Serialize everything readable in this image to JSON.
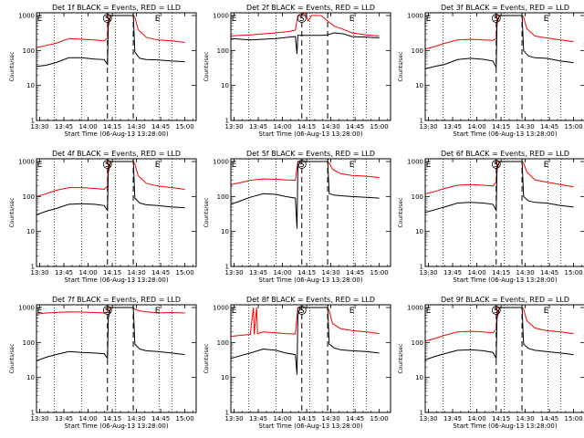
{
  "chart_data": {
    "type": "line",
    "figure": "RHESSI-style detector count-rate lightcurves (3x3 grid)",
    "panels": [
      {
        "title": "Det 1f  BLACK = Events, RED = LLD",
        "black": [
          [
            0,
            35
          ],
          [
            6,
            38
          ],
          [
            12,
            45
          ],
          [
            20,
            62
          ],
          [
            28,
            62
          ],
          [
            36,
            57
          ],
          [
            42,
            55
          ],
          [
            44,
            40
          ],
          [
            44.5,
            500
          ],
          [
            46,
            1000
          ],
          [
            60,
            1000
          ],
          [
            61,
            90
          ],
          [
            64,
            60
          ],
          [
            68,
            55
          ],
          [
            75,
            54
          ],
          [
            84,
            50
          ],
          [
            92,
            48
          ]
        ],
        "red": [
          [
            0,
            120
          ],
          [
            6,
            140
          ],
          [
            12,
            160
          ],
          [
            20,
            220
          ],
          [
            28,
            210
          ],
          [
            36,
            200
          ],
          [
            42,
            190
          ],
          [
            44,
            230
          ],
          [
            44.5,
            1000
          ],
          [
            60,
            1000
          ],
          [
            61,
            900
          ],
          [
            63,
            400
          ],
          [
            68,
            240
          ],
          [
            75,
            200
          ],
          [
            84,
            190
          ],
          [
            92,
            170
          ]
        ]
      },
      {
        "title": "Det 2f  BLACK = Events, RED = LLD",
        "black": [
          [
            0,
            220
          ],
          [
            6,
            210
          ],
          [
            12,
            200
          ],
          [
            20,
            210
          ],
          [
            28,
            220
          ],
          [
            36,
            240
          ],
          [
            40,
            250
          ],
          [
            41,
            80
          ],
          [
            41.5,
            270
          ],
          [
            48,
            270
          ],
          [
            56,
            270
          ],
          [
            60,
            280
          ],
          [
            64,
            320
          ],
          [
            70,
            300
          ],
          [
            75,
            250
          ],
          [
            84,
            240
          ],
          [
            92,
            230
          ]
        ],
        "red": [
          [
            0,
            260
          ],
          [
            6,
            270
          ],
          [
            12,
            280
          ],
          [
            20,
            300
          ],
          [
            28,
            320
          ],
          [
            36,
            350
          ],
          [
            40,
            380
          ],
          [
            41.5,
            1000
          ],
          [
            46,
            1200
          ],
          [
            48,
            700
          ],
          [
            50,
            1000
          ],
          [
            56,
            1000
          ],
          [
            60,
            700
          ],
          [
            64,
            500
          ],
          [
            70,
            400
          ],
          [
            75,
            320
          ],
          [
            84,
            280
          ],
          [
            92,
            260
          ]
        ]
      },
      {
        "title": "Det 3f  BLACK = Events, RED = LLD",
        "black": [
          [
            0,
            30
          ],
          [
            6,
            35
          ],
          [
            12,
            40
          ],
          [
            20,
            55
          ],
          [
            28,
            60
          ],
          [
            36,
            56
          ],
          [
            42,
            50
          ],
          [
            44,
            32
          ],
          [
            44.5,
            600
          ],
          [
            46,
            1000
          ],
          [
            60,
            1000
          ],
          [
            61,
            100
          ],
          [
            64,
            70
          ],
          [
            68,
            62
          ],
          [
            75,
            60
          ],
          [
            84,
            50
          ],
          [
            92,
            45
          ]
        ],
        "red": [
          [
            0,
            110
          ],
          [
            6,
            130
          ],
          [
            12,
            160
          ],
          [
            20,
            200
          ],
          [
            28,
            210
          ],
          [
            36,
            200
          ],
          [
            42,
            195
          ],
          [
            44,
            220
          ],
          [
            44.5,
            1000
          ],
          [
            60,
            1000
          ],
          [
            61,
            900
          ],
          [
            63,
            420
          ],
          [
            68,
            260
          ],
          [
            75,
            230
          ],
          [
            84,
            200
          ],
          [
            92,
            180
          ]
        ]
      },
      {
        "title": "Det 4f  BLACK = Events, RED = LLD",
        "black": [
          [
            0,
            30
          ],
          [
            6,
            38
          ],
          [
            12,
            45
          ],
          [
            20,
            60
          ],
          [
            28,
            62
          ],
          [
            36,
            60
          ],
          [
            42,
            55
          ],
          [
            44,
            40
          ],
          [
            44.5,
            500
          ],
          [
            46,
            1000
          ],
          [
            60,
            1000
          ],
          [
            61,
            90
          ],
          [
            64,
            65
          ],
          [
            68,
            58
          ],
          [
            75,
            55
          ],
          [
            84,
            50
          ],
          [
            92,
            48
          ]
        ],
        "red": [
          [
            0,
            100
          ],
          [
            6,
            120
          ],
          [
            12,
            150
          ],
          [
            20,
            180
          ],
          [
            28,
            180
          ],
          [
            36,
            170
          ],
          [
            42,
            160
          ],
          [
            44,
            200
          ],
          [
            44.5,
            1000
          ],
          [
            60,
            1000
          ],
          [
            61,
            850
          ],
          [
            63,
            400
          ],
          [
            68,
            240
          ],
          [
            75,
            200
          ],
          [
            84,
            180
          ],
          [
            92,
            160
          ]
        ]
      },
      {
        "title": "Det 5f  BLACK = Events, RED = LLD",
        "black": [
          [
            0,
            60
          ],
          [
            6,
            75
          ],
          [
            12,
            95
          ],
          [
            20,
            120
          ],
          [
            28,
            115
          ],
          [
            34,
            100
          ],
          [
            40,
            90
          ],
          [
            41,
            12
          ],
          [
            41.5,
            700
          ],
          [
            43,
            1000
          ],
          [
            60,
            1000
          ],
          [
            61,
            120
          ],
          [
            64,
            110
          ],
          [
            68,
            105
          ],
          [
            75,
            100
          ],
          [
            84,
            95
          ],
          [
            92,
            90
          ]
        ],
        "red": [
          [
            0,
            220
          ],
          [
            6,
            250
          ],
          [
            12,
            290
          ],
          [
            20,
            320
          ],
          [
            28,
            310
          ],
          [
            34,
            300
          ],
          [
            40,
            290
          ],
          [
            41.5,
            1000
          ],
          [
            60,
            1000
          ],
          [
            61,
            900
          ],
          [
            63,
            600
          ],
          [
            68,
            450
          ],
          [
            75,
            400
          ],
          [
            84,
            380
          ],
          [
            92,
            350
          ]
        ]
      },
      {
        "title": "Det 6f  BLACK = Events, RED = LLD",
        "black": [
          [
            0,
            35
          ],
          [
            6,
            42
          ],
          [
            12,
            50
          ],
          [
            20,
            65
          ],
          [
            28,
            68
          ],
          [
            36,
            65
          ],
          [
            42,
            60
          ],
          [
            44,
            40
          ],
          [
            44.5,
            600
          ],
          [
            46,
            1000
          ],
          [
            60,
            1000
          ],
          [
            61,
            100
          ],
          [
            64,
            75
          ],
          [
            68,
            68
          ],
          [
            75,
            65
          ],
          [
            84,
            55
          ],
          [
            92,
            50
          ]
        ],
        "red": [
          [
            0,
            120
          ],
          [
            6,
            140
          ],
          [
            12,
            170
          ],
          [
            20,
            210
          ],
          [
            28,
            220
          ],
          [
            36,
            210
          ],
          [
            42,
            200
          ],
          [
            44,
            260
          ],
          [
            44.5,
            1000
          ],
          [
            60,
            1000
          ],
          [
            61,
            900
          ],
          [
            63,
            500
          ],
          [
            68,
            300
          ],
          [
            75,
            260
          ],
          [
            84,
            220
          ],
          [
            92,
            190
          ]
        ]
      },
      {
        "title": "Det 7f  BLACK = Events, RED = LLD",
        "black": [
          [
            0,
            30
          ],
          [
            6,
            38
          ],
          [
            12,
            45
          ],
          [
            20,
            55
          ],
          [
            28,
            52
          ],
          [
            36,
            50
          ],
          [
            42,
            48
          ],
          [
            44,
            35
          ],
          [
            44.5,
            500
          ],
          [
            46,
            1000
          ],
          [
            60,
            1000
          ],
          [
            61,
            90
          ],
          [
            64,
            65
          ],
          [
            68,
            58
          ],
          [
            75,
            55
          ],
          [
            84,
            50
          ],
          [
            92,
            45
          ]
        ],
        "red": [
          [
            0,
            650
          ],
          [
            6,
            700
          ],
          [
            12,
            720
          ],
          [
            20,
            750
          ],
          [
            28,
            740
          ],
          [
            36,
            720
          ],
          [
            42,
            700
          ],
          [
            44,
            750
          ],
          [
            44.5,
            1000
          ],
          [
            60,
            1000
          ],
          [
            61,
            900
          ],
          [
            64,
            800
          ],
          [
            68,
            760
          ],
          [
            75,
            700
          ],
          [
            84,
            720
          ],
          [
            92,
            700
          ]
        ]
      },
      {
        "title": "Det 8f  BLACK = Events, RED = LLD",
        "black": [
          [
            0,
            35
          ],
          [
            6,
            42
          ],
          [
            12,
            50
          ],
          [
            20,
            65
          ],
          [
            28,
            60
          ],
          [
            34,
            50
          ],
          [
            40,
            45
          ],
          [
            41,
            12
          ],
          [
            41.5,
            600
          ],
          [
            43,
            1000
          ],
          [
            60,
            1000
          ],
          [
            61,
            90
          ],
          [
            64,
            70
          ],
          [
            68,
            62
          ],
          [
            75,
            58
          ],
          [
            84,
            55
          ],
          [
            92,
            50
          ]
        ],
        "red": [
          [
            0,
            150
          ],
          [
            6,
            160
          ],
          [
            12,
            170
          ],
          [
            14,
            1000
          ],
          [
            14.5,
            170
          ],
          [
            16,
            1000
          ],
          [
            16.5,
            180
          ],
          [
            20,
            200
          ],
          [
            28,
            190
          ],
          [
            34,
            180
          ],
          [
            40,
            175
          ],
          [
            41.5,
            1000
          ],
          [
            60,
            1000
          ],
          [
            61,
            800
          ],
          [
            63,
            350
          ],
          [
            68,
            250
          ],
          [
            75,
            220
          ],
          [
            84,
            200
          ],
          [
            92,
            180
          ]
        ]
      },
      {
        "title": "Det 9f  BLACK = Events, RED = LLD",
        "black": [
          [
            0,
            32
          ],
          [
            6,
            40
          ],
          [
            12,
            48
          ],
          [
            20,
            60
          ],
          [
            28,
            62
          ],
          [
            36,
            58
          ],
          [
            42,
            52
          ],
          [
            44,
            35
          ],
          [
            44.5,
            500
          ],
          [
            46,
            1000
          ],
          [
            60,
            1000
          ],
          [
            61,
            90
          ],
          [
            64,
            68
          ],
          [
            68,
            60
          ],
          [
            75,
            55
          ],
          [
            84,
            50
          ],
          [
            92,
            45
          ]
        ],
        "red": [
          [
            0,
            110
          ],
          [
            6,
            130
          ],
          [
            12,
            160
          ],
          [
            20,
            200
          ],
          [
            28,
            210
          ],
          [
            36,
            200
          ],
          [
            42,
            190
          ],
          [
            44,
            240
          ],
          [
            44.5,
            1000
          ],
          [
            60,
            1000
          ],
          [
            61,
            900
          ],
          [
            63,
            420
          ],
          [
            68,
            260
          ],
          [
            75,
            220
          ],
          [
            84,
            200
          ],
          [
            92,
            180
          ]
        ]
      }
    ],
    "xlabel": "Start Time (06-Aug-13 13:28:00)",
    "ylabel": "Counts/sec",
    "x_ticks": [
      {
        "label": "13:30",
        "t": 2
      },
      {
        "label": "13:45",
        "t": 17
      },
      {
        "label": "14:00",
        "t": 32
      },
      {
        "label": "14:15",
        "t": 47
      },
      {
        "label": "14:30",
        "t": 62
      },
      {
        "label": "14:45",
        "t": 77
      },
      {
        "label": "15:00",
        "t": 92
      }
    ],
    "xlim_minutes_since_start": [
      0,
      99
    ],
    "y_ticks": [
      "1",
      "10",
      "100",
      "1000"
    ],
    "ylim": [
      1,
      1200
    ],
    "y_scale": "log",
    "dotted_lines_t": [
      11,
      28,
      49,
      76,
      84
    ],
    "dashed_lines_t": [
      44,
      60
    ],
    "markers": [
      {
        "label": "E",
        "t": 2
      },
      {
        "label": "S",
        "t": 44
      },
      {
        "label": "E",
        "t": 75
      }
    ],
    "colors": {
      "events": "#000000",
      "lld": "#ff0000"
    }
  }
}
